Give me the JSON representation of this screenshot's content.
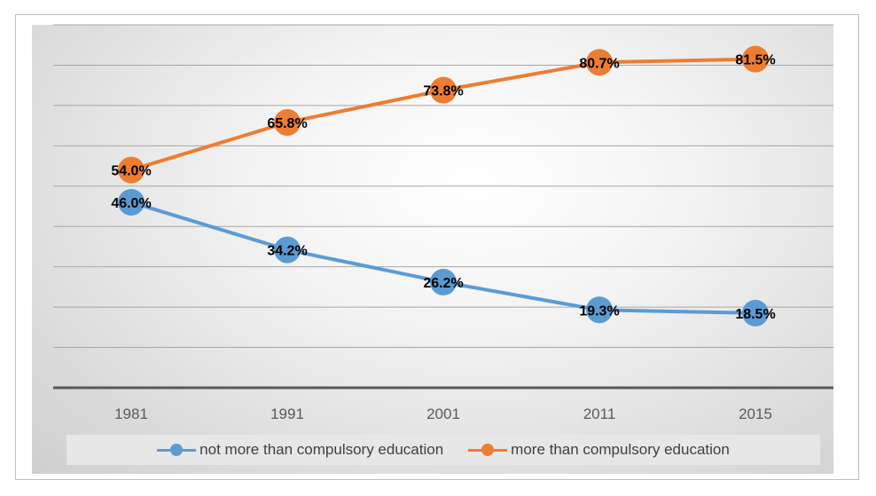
{
  "chart_data": {
    "type": "line",
    "title": "",
    "xlabel": "",
    "ylabel": "",
    "categories": [
      "1981",
      "1991",
      "2001",
      "2011",
      "2015"
    ],
    "ylim": [
      0,
      90
    ],
    "grid": true,
    "legend_position": "bottom",
    "series": [
      {
        "name": "not more than compulsory education",
        "values": [
          46.0,
          34.2,
          26.2,
          19.3,
          18.5
        ],
        "labels": [
          "46.0%",
          "34.2%",
          "26.2%",
          "19.3%",
          "18.5%"
        ],
        "color": "#5b9bd5"
      },
      {
        "name": "more than compulsory education",
        "values": [
          54.0,
          65.8,
          73.8,
          80.7,
          81.5
        ],
        "labels": [
          "54.0%",
          "65.8%",
          "73.8%",
          "80.7%",
          "81.5%"
        ],
        "color": "#ed7d31"
      }
    ]
  }
}
